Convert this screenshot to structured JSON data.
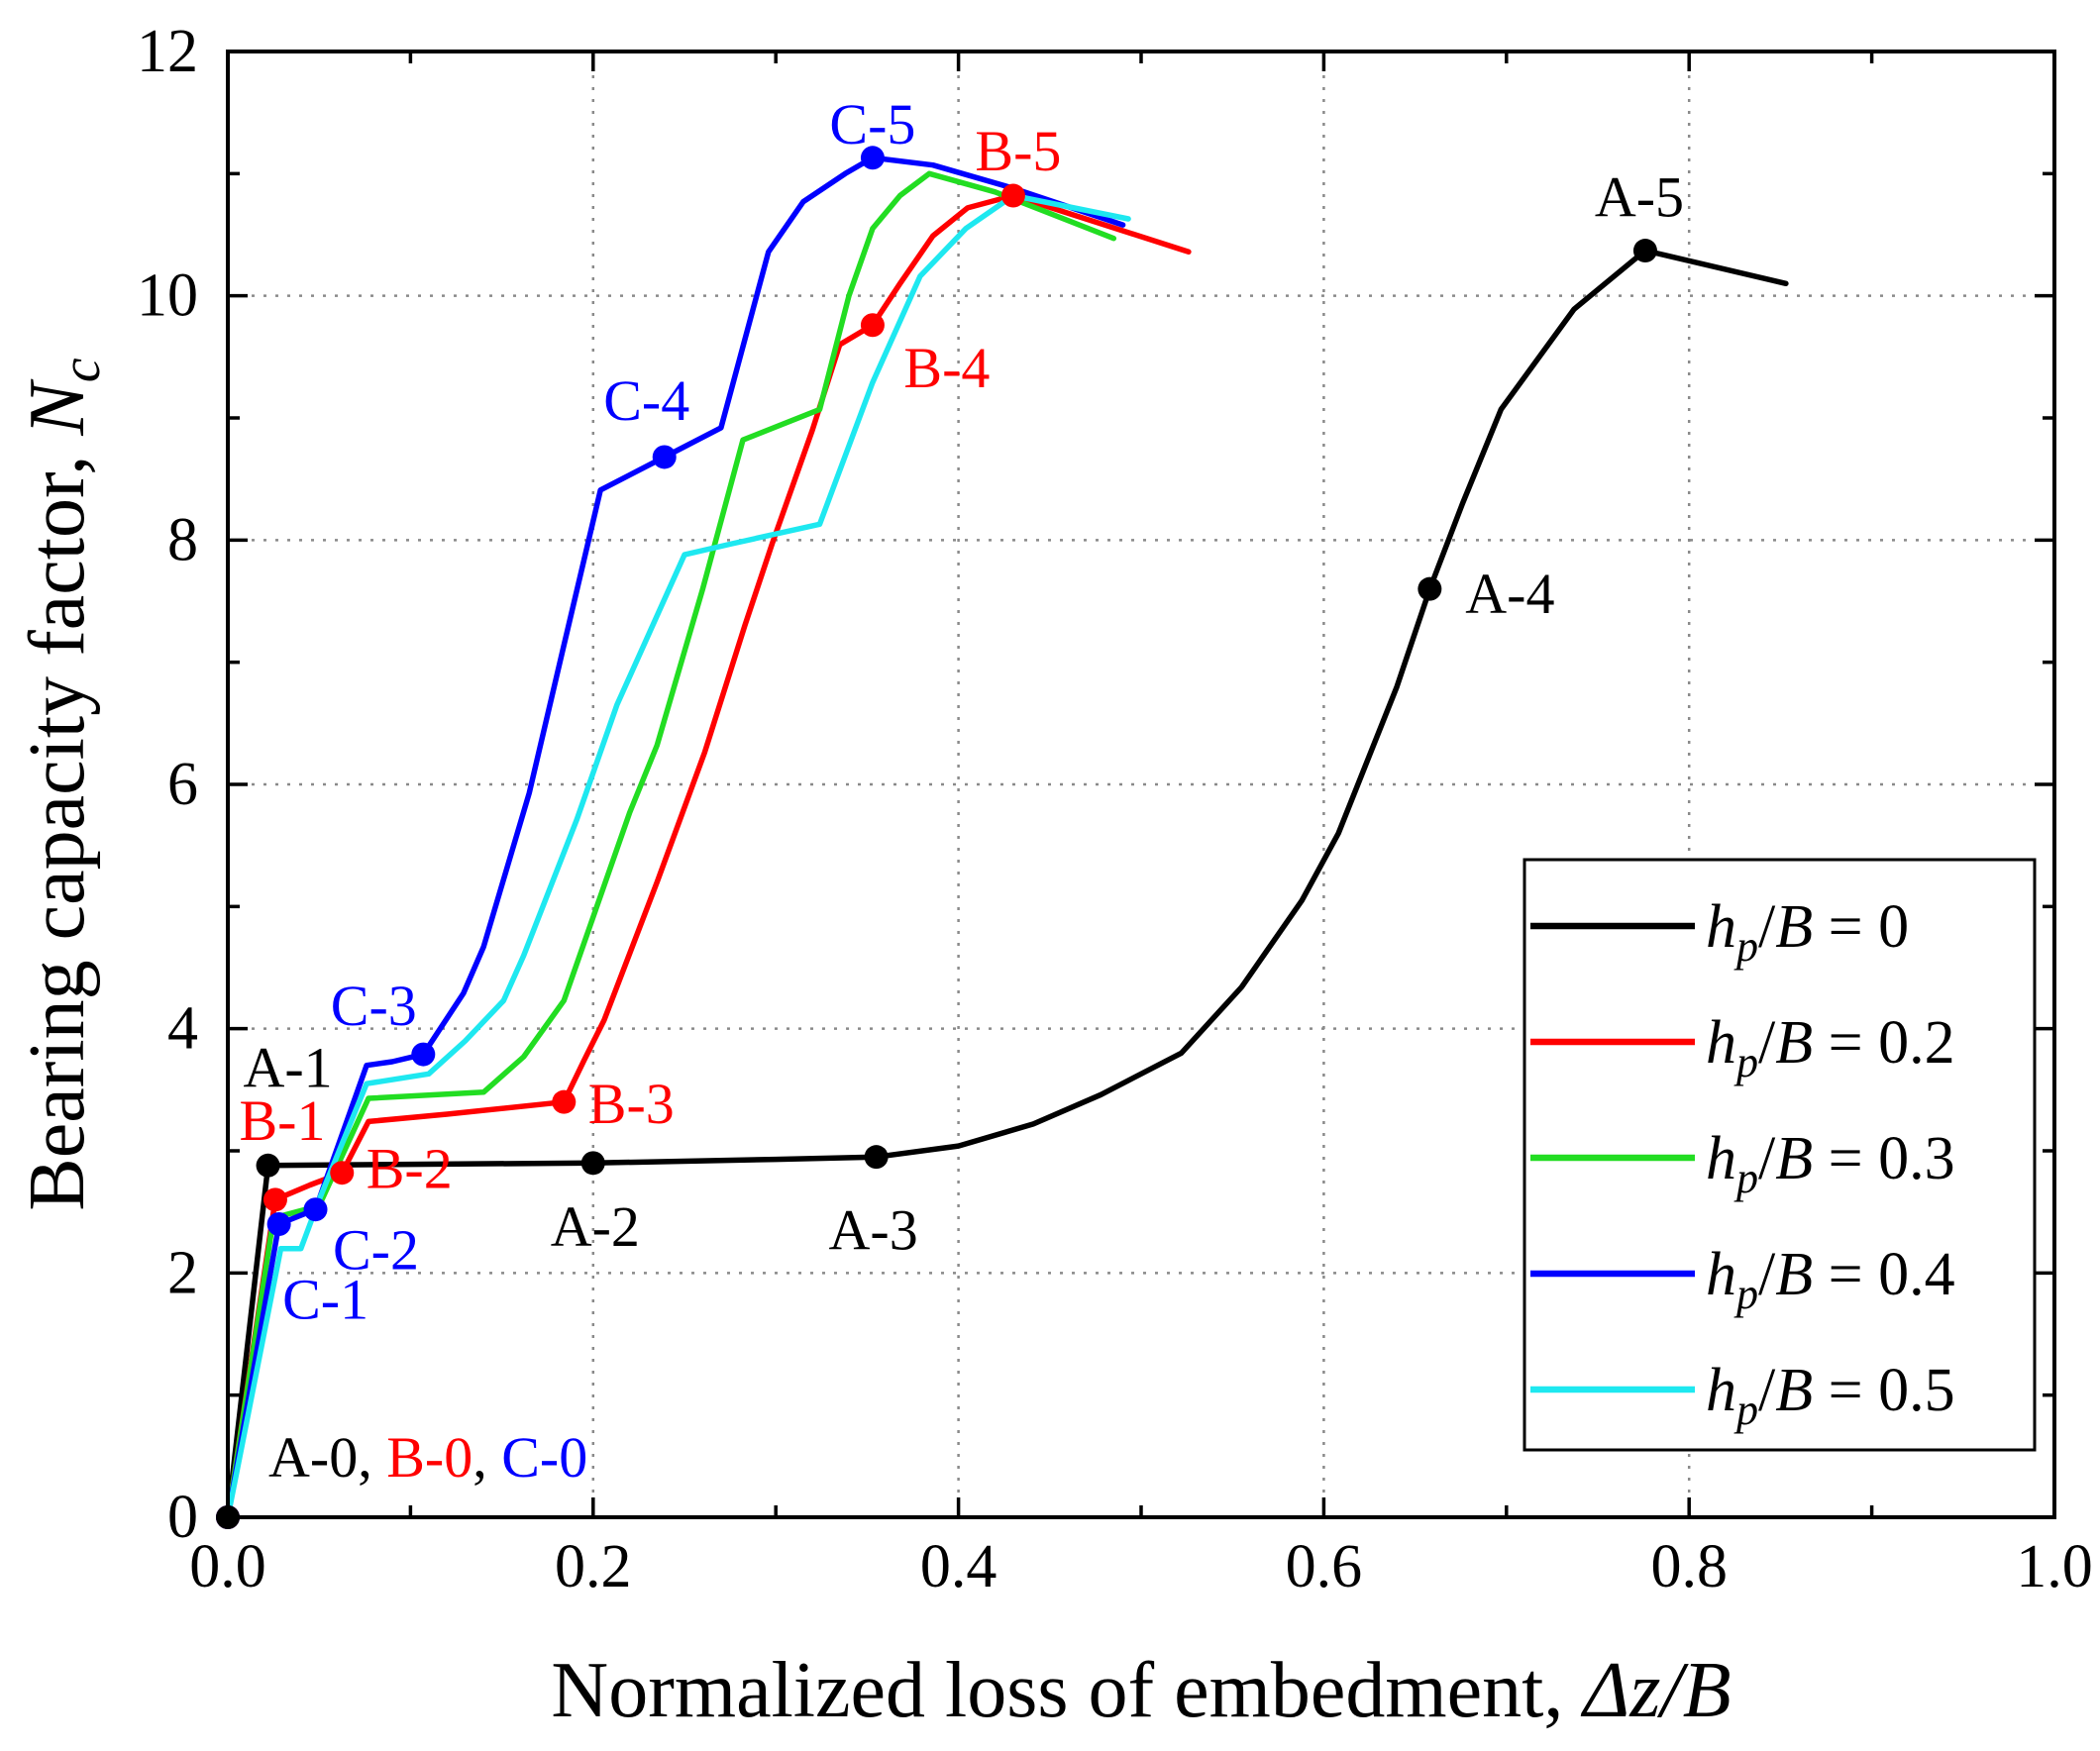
{
  "chart_data": {
    "type": "line",
    "xlabel": "Normalized loss of embedment, Δz/B",
    "ylabel": "Bearing capacity factor, Nc",
    "xlim": [
      0,
      1
    ],
    "ylim": [
      0,
      12
    ],
    "xticks": [
      0,
      0.2,
      0.4,
      0.6,
      0.8,
      1.0
    ],
    "xtick_labels": [
      "0.0",
      "0.2",
      "0.4",
      "0.6",
      "0.8",
      "1.0"
    ],
    "yticks": [
      0,
      2,
      4,
      6,
      8,
      10,
      12
    ],
    "ytick_labels": [
      "0",
      "2",
      "4",
      "6",
      "8",
      "10",
      "12"
    ],
    "grid": true,
    "legend_position": "lower right",
    "annotation_separator": ", ",
    "series": [
      {
        "name": "hp/B = 0",
        "color": "#000000",
        "points": [
          [
            0,
            0
          ],
          [
            0.022,
            2.88
          ],
          [
            0.1,
            2.89
          ],
          [
            0.2,
            2.9
          ],
          [
            0.3,
            2.93
          ],
          [
            0.355,
            2.95
          ],
          [
            0.4,
            3.04
          ],
          [
            0.441,
            3.22
          ],
          [
            0.478,
            3.46
          ],
          [
            0.522,
            3.8
          ],
          [
            0.555,
            4.34
          ],
          [
            0.588,
            5.05
          ],
          [
            0.608,
            5.6
          ],
          [
            0.64,
            6.8
          ],
          [
            0.658,
            7.6
          ],
          [
            0.676,
            8.3
          ],
          [
            0.697,
            9.07
          ],
          [
            0.737,
            9.89
          ],
          [
            0.776,
            10.37
          ],
          [
            0.853,
            10.1
          ]
        ],
        "markers": [
          {
            "label": "A-0",
            "x": 0,
            "y": 0
          },
          {
            "label": "A-1",
            "x": 0.022,
            "y": 2.88
          },
          {
            "label": "A-2",
            "x": 0.2,
            "y": 2.9
          },
          {
            "label": "A-3",
            "x": 0.355,
            "y": 2.95
          },
          {
            "label": "A-4",
            "x": 0.658,
            "y": 7.6
          },
          {
            "label": "A-5",
            "x": 0.776,
            "y": 10.37
          }
        ]
      },
      {
        "name": "hp/B = 0.2",
        "color": "#ff0000",
        "points": [
          [
            0,
            0
          ],
          [
            0.026,
            2.6
          ],
          [
            0.045,
            2.72
          ],
          [
            0.0625,
            2.82
          ],
          [
            0.077,
            3.24
          ],
          [
            0.12,
            3.3
          ],
          [
            0.184,
            3.4
          ],
          [
            0.195,
            3.74
          ],
          [
            0.206,
            4.07
          ],
          [
            0.235,
            5.2
          ],
          [
            0.261,
            6.26
          ],
          [
            0.283,
            7.3
          ],
          [
            0.298,
            7.97
          ],
          [
            0.32,
            8.9
          ],
          [
            0.335,
            9.6
          ],
          [
            0.353,
            9.76
          ],
          [
            0.368,
            10.1
          ],
          [
            0.386,
            10.49
          ],
          [
            0.405,
            10.72
          ],
          [
            0.43,
            10.82
          ],
          [
            0.526,
            10.36
          ]
        ],
        "markers": [
          {
            "label": "B-0",
            "x": 0,
            "y": 0
          },
          {
            "label": "B-1",
            "x": 0.026,
            "y": 2.6
          },
          {
            "label": "B-2",
            "x": 0.0625,
            "y": 2.82
          },
          {
            "label": "B-3",
            "x": 0.184,
            "y": 3.4
          },
          {
            "label": "B-4",
            "x": 0.353,
            "y": 9.76
          },
          {
            "label": "B-5",
            "x": 0.43,
            "y": 10.82
          }
        ]
      },
      {
        "name": "hp/B = 0.3",
        "color": "#22dd22",
        "points": [
          [
            0,
            0
          ],
          [
            0.025,
            2.45
          ],
          [
            0.05,
            2.55
          ],
          [
            0.077,
            3.43
          ],
          [
            0.14,
            3.48
          ],
          [
            0.162,
            3.77
          ],
          [
            0.184,
            4.23
          ],
          [
            0.22,
            5.77
          ],
          [
            0.235,
            6.32
          ],
          [
            0.26,
            7.6
          ],
          [
            0.282,
            8.82
          ],
          [
            0.324,
            9.07
          ],
          [
            0.34,
            10.0
          ],
          [
            0.353,
            10.55
          ],
          [
            0.368,
            10.82
          ],
          [
            0.384,
            11.0
          ],
          [
            0.42,
            10.85
          ],
          [
            0.485,
            10.47
          ]
        ],
        "markers": []
      },
      {
        "name": "hp/B = 0.4",
        "color": "#0000ff",
        "points": [
          [
            0,
            0
          ],
          [
            0.028,
            2.4
          ],
          [
            0.048,
            2.52
          ],
          [
            0.076,
            3.7
          ],
          [
            0.09,
            3.73
          ],
          [
            0.107,
            3.79
          ],
          [
            0.129,
            4.29
          ],
          [
            0.14,
            4.67
          ],
          [
            0.165,
            5.93
          ],
          [
            0.184,
            7.14
          ],
          [
            0.204,
            8.41
          ],
          [
            0.239,
            8.68
          ],
          [
            0.27,
            8.92
          ],
          [
            0.296,
            10.36
          ],
          [
            0.315,
            10.77
          ],
          [
            0.338,
            11.0
          ],
          [
            0.353,
            11.13
          ],
          [
            0.386,
            11.07
          ],
          [
            0.43,
            10.88
          ],
          [
            0.49,
            10.58
          ]
        ],
        "markers": [
          {
            "label": "C-0",
            "x": 0,
            "y": 0
          },
          {
            "label": "C-1",
            "x": 0.028,
            "y": 2.4
          },
          {
            "label": "C-2",
            "x": 0.048,
            "y": 2.52
          },
          {
            "label": "C-3",
            "x": 0.107,
            "y": 3.79
          },
          {
            "label": "C-4",
            "x": 0.239,
            "y": 8.68
          },
          {
            "label": "C-5",
            "x": 0.353,
            "y": 11.13
          }
        ]
      },
      {
        "name": "hp/B = 0.5",
        "color": "#1ee8f0",
        "points": [
          [
            0,
            0
          ],
          [
            0.029,
            2.2
          ],
          [
            0.04,
            2.2
          ],
          [
            0.05,
            2.6
          ],
          [
            0.076,
            3.55
          ],
          [
            0.11,
            3.63
          ],
          [
            0.13,
            3.9
          ],
          [
            0.151,
            4.23
          ],
          [
            0.162,
            4.6
          ],
          [
            0.191,
            5.71
          ],
          [
            0.213,
            6.65
          ],
          [
            0.25,
            7.88
          ],
          [
            0.276,
            7.97
          ],
          [
            0.324,
            8.13
          ],
          [
            0.353,
            9.29
          ],
          [
            0.379,
            10.16
          ],
          [
            0.404,
            10.55
          ],
          [
            0.43,
            10.82
          ],
          [
            0.493,
            10.63
          ]
        ],
        "markers": []
      }
    ]
  }
}
